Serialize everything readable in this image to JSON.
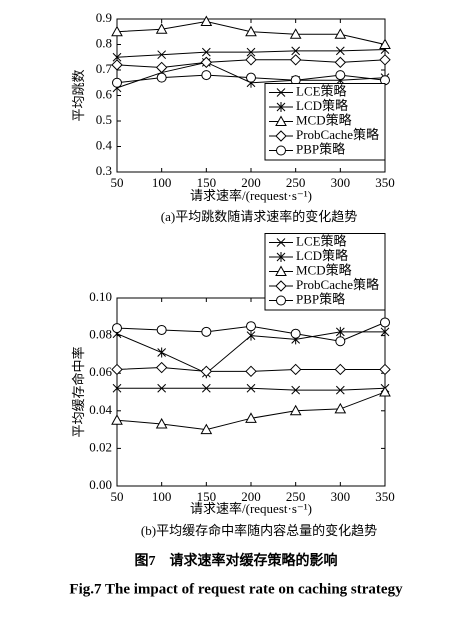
{
  "chart_data": [
    {
      "type": "line",
      "caption": "(a)平均跳数随请求速率的变化趋势",
      "x_label": "请求速率/(request·s⁻¹)",
      "y_label": "平均跳数",
      "x": [
        50,
        100,
        150,
        200,
        250,
        300,
        350
      ],
      "xlim": [
        50,
        350
      ],
      "xticks": [
        50,
        100,
        150,
        200,
        250,
        300,
        350
      ],
      "ylim": [
        0.3,
        0.9
      ],
      "yticks": [
        0.3,
        0.4,
        0.5,
        0.6,
        0.7,
        0.8,
        0.9
      ],
      "legend": "lower right",
      "series": [
        {
          "name": "LCE策略",
          "color": "#000000",
          "marker": "x",
          "values": [
            0.75,
            0.76,
            0.77,
            0.77,
            0.775,
            0.775,
            0.78
          ]
        },
        {
          "name": "LCD策略",
          "color": "#000000",
          "marker": "star",
          "values": [
            0.63,
            0.69,
            0.73,
            0.65,
            0.66,
            0.66,
            0.67
          ]
        },
        {
          "name": "MCD策略",
          "color": "#000000",
          "marker": "triangle",
          "values": [
            0.85,
            0.86,
            0.89,
            0.85,
            0.84,
            0.84,
            0.8
          ]
        },
        {
          "name": "ProbCache策略",
          "color": "#000000",
          "marker": "diamond",
          "values": [
            0.72,
            0.71,
            0.73,
            0.74,
            0.74,
            0.73,
            0.74
          ]
        },
        {
          "name": "PBP策略",
          "color": "#000000",
          "marker": "circle",
          "values": [
            0.65,
            0.67,
            0.68,
            0.67,
            0.66,
            0.68,
            0.66
          ]
        }
      ]
    },
    {
      "type": "line",
      "caption": "(b)平均缓存命中率随内容总量的变化趋势",
      "x_label": "请求速率/(request·s⁻¹)",
      "y_label": "平均缓存命中率",
      "x": [
        50,
        100,
        150,
        200,
        250,
        300,
        350
      ],
      "xlim": [
        50,
        350
      ],
      "xticks": [
        50,
        100,
        150,
        200,
        250,
        300,
        350
      ],
      "ylim": [
        0,
        0.1
      ],
      "yticks": [
        {
          "value": 0,
          "label": "0.00"
        },
        0.02,
        0.04,
        0.06,
        0.08,
        {
          "value": 0.1,
          "label": "0.10"
        }
      ],
      "legend": "upper right",
      "series": [
        {
          "name": "LCE策略",
          "color": "#000000",
          "marker": "x",
          "values": [
            0.052,
            0.052,
            0.052,
            0.052,
            0.051,
            0.051,
            0.052
          ]
        },
        {
          "name": "LCD策略",
          "color": "#000000",
          "marker": "star",
          "values": [
            0.081,
            0.071,
            0.06,
            0.08,
            0.078,
            0.082,
            0.082
          ]
        },
        {
          "name": "MCD策略",
          "color": "#000000",
          "marker": "triangle",
          "values": [
            0.035,
            0.033,
            0.03,
            0.036,
            0.04,
            0.041,
            0.05
          ]
        },
        {
          "name": "ProbCache策略",
          "color": "#000000",
          "marker": "diamond",
          "values": [
            0.062,
            0.063,
            0.061,
            0.061,
            0.062,
            0.062,
            0.062
          ]
        },
        {
          "name": "PBP策略",
          "color": "#000000",
          "marker": "circle",
          "values": [
            0.084,
            0.083,
            0.082,
            0.085,
            0.081,
            0.077,
            0.087
          ]
        }
      ]
    }
  ],
  "figure": {
    "caption_zh": "图7　请求速率对缓存策略的影响",
    "caption_en": "Fig.7   The impact of request rate on caching strategy"
  }
}
